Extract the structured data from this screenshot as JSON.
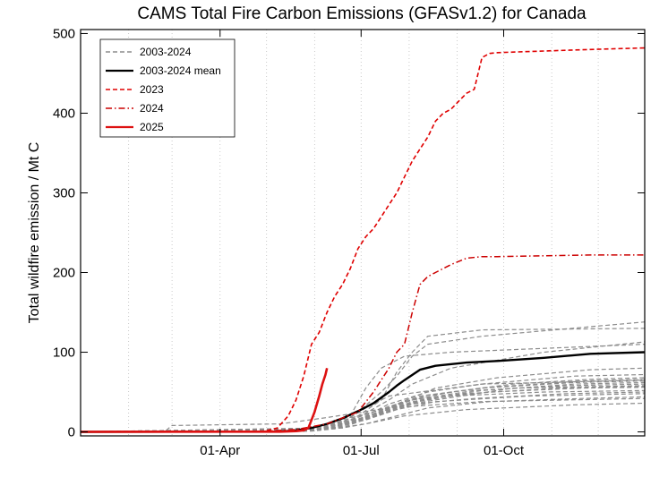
{
  "chart_data": {
    "type": "line",
    "title": "CAMS Total Fire Carbon Emissions (GFASv1.2) for Canada",
    "xlabel": "",
    "ylabel": "Total wildfire emission / Mt C",
    "x_unit": "day of year",
    "xlim": [
      1,
      365
    ],
    "ylim": [
      -5,
      505
    ],
    "x_ticks": [
      {
        "x": 91,
        "label": "01-Apr"
      },
      {
        "x": 182,
        "label": "01-Jul"
      },
      {
        "x": 274,
        "label": "01-Oct"
      }
    ],
    "y_ticks": [
      0,
      100,
      200,
      300,
      400,
      500
    ],
    "grid": "vertical dotted",
    "legend": {
      "placement": "top-left",
      "entries": [
        {
          "label": "2003-2024",
          "color": "#8c8c8c",
          "style": "dashed"
        },
        {
          "label": "2003-2024 mean",
          "color": "#000000",
          "style": "solid"
        },
        {
          "label": "2023",
          "color": "#e00000",
          "style": "dashed"
        },
        {
          "label": "2024",
          "color": "#cc0000",
          "style": "dash-dot"
        },
        {
          "label": "2025",
          "color": "#dd1111",
          "style": "solid"
        }
      ]
    },
    "series": [
      {
        "name": "2003-2024 mean",
        "color": "#000000",
        "style": "solid",
        "width": 2.4,
        "x": [
          1,
          130,
          140,
          150,
          160,
          170,
          180,
          190,
          200,
          205,
          210,
          220,
          230,
          250,
          270,
          300,
          330,
          365
        ],
        "y": [
          0,
          0.5,
          2,
          5,
          10,
          17,
          26,
          36,
          50,
          58,
          65,
          78,
          83,
          87,
          89,
          93,
          98,
          100
        ]
      },
      {
        "name": "2023",
        "color": "#e00000",
        "style": "dashed",
        "width": 1.6,
        "x": [
          1,
          120,
          128,
          135,
          140,
          145,
          150,
          155,
          160,
          165,
          170,
          175,
          180,
          185,
          190,
          195,
          200,
          205,
          210,
          215,
          220,
          225,
          230,
          235,
          240,
          245,
          250,
          255,
          260,
          265,
          270,
          300,
          330,
          365
        ],
        "y": [
          0,
          1,
          5,
          20,
          40,
          70,
          110,
          125,
          150,
          170,
          185,
          205,
          230,
          245,
          255,
          270,
          285,
          300,
          320,
          340,
          355,
          370,
          390,
          400,
          405,
          415,
          425,
          430,
          470,
          475,
          476,
          478,
          480,
          482
        ]
      },
      {
        "name": "2024",
        "color": "#cc0000",
        "style": "dash-dot",
        "width": 1.5,
        "x": [
          1,
          120,
          140,
          160,
          180,
          190,
          200,
          205,
          210,
          215,
          220,
          225,
          230,
          240,
          250,
          260,
          270,
          300,
          330,
          365
        ],
        "y": [
          0,
          1,
          3,
          10,
          25,
          50,
          80,
          100,
          110,
          150,
          185,
          195,
          200,
          210,
          218,
          220,
          220,
          221,
          222,
          222
        ]
      },
      {
        "name": "2025",
        "color": "#dd1111",
        "style": "solid",
        "width": 2.6,
        "x": [
          1,
          130,
          140,
          145,
          148,
          150,
          152,
          155,
          157,
          159,
          160
        ],
        "y": [
          0,
          0.3,
          1,
          2,
          5,
          15,
          25,
          45,
          60,
          72,
          80
        ]
      },
      {
        "name": "2003-2024",
        "color": "#8c8c8c",
        "style": "dashed",
        "width": 1.2,
        "x": [
          1,
          55,
          60,
          130,
          160,
          200,
          260,
          365
        ],
        "y": [
          0,
          0,
          8,
          10,
          18,
          30,
          38,
          42
        ]
      },
      {
        "name": "2003-2024",
        "color": "#8c8c8c",
        "style": "dashed",
        "width": 1.2,
        "x": [
          1,
          140,
          160,
          180,
          200,
          230,
          280,
          365
        ],
        "y": [
          0,
          1,
          8,
          20,
          30,
          40,
          55,
          58
        ]
      },
      {
        "name": "2003-2024",
        "color": "#8c8c8c",
        "style": "dashed",
        "width": 1.2,
        "x": [
          1,
          150,
          170,
          185,
          200,
          220,
          260,
          365
        ],
        "y": [
          0,
          2,
          12,
          30,
          45,
          50,
          60,
          65
        ]
      },
      {
        "name": "2003-2024",
        "color": "#8c8c8c",
        "style": "dashed",
        "width": 1.2,
        "x": [
          1,
          160,
          175,
          185,
          195,
          210,
          240,
          365
        ],
        "y": [
          0,
          5,
          20,
          55,
          80,
          95,
          100,
          110
        ]
      },
      {
        "name": "2003-2024",
        "color": "#8c8c8c",
        "style": "dashed",
        "width": 1.2,
        "x": [
          1,
          165,
          180,
          195,
          205,
          215,
          225,
          260,
          365
        ],
        "y": [
          0,
          5,
          25,
          50,
          70,
          95,
          110,
          120,
          138
        ]
      },
      {
        "name": "2003-2024",
        "color": "#8c8c8c",
        "style": "dashed",
        "width": 1.2,
        "x": [
          1,
          165,
          180,
          195,
          205,
          215,
          225,
          260,
          365
        ],
        "y": [
          0,
          4,
          20,
          40,
          75,
          100,
          120,
          128,
          130
        ]
      },
      {
        "name": "2003-2024",
        "color": "#8c8c8c",
        "style": "dashed",
        "width": 1.2,
        "x": [
          1,
          160,
          180,
          200,
          215,
          240,
          300,
          365
        ],
        "y": [
          0,
          3,
          18,
          40,
          60,
          80,
          100,
          113
        ]
      },
      {
        "name": "2003-2024",
        "color": "#8c8c8c",
        "style": "dashed",
        "width": 1.2,
        "x": [
          1,
          150,
          170,
          190,
          210,
          240,
          300,
          365
        ],
        "y": [
          0,
          2,
          10,
          20,
          35,
          45,
          50,
          52
        ]
      },
      {
        "name": "2003-2024",
        "color": "#8c8c8c",
        "style": "dashed",
        "width": 1.2,
        "x": [
          1,
          145,
          165,
          185,
          205,
          230,
          290,
          365
        ],
        "y": [
          0,
          1,
          6,
          15,
          28,
          38,
          45,
          48
        ]
      },
      {
        "name": "2003-2024",
        "color": "#8c8c8c",
        "style": "dashed",
        "width": 1.2,
        "x": [
          1,
          150,
          175,
          200,
          220,
          260,
          320,
          365
        ],
        "y": [
          0,
          2,
          12,
          30,
          45,
          55,
          62,
          64
        ]
      },
      {
        "name": "2003-2024",
        "color": "#8c8c8c",
        "style": "dashed",
        "width": 1.2,
        "x": [
          1,
          150,
          170,
          190,
          210,
          250,
          320,
          365
        ],
        "y": [
          0,
          1,
          5,
          12,
          20,
          28,
          34,
          36
        ]
      },
      {
        "name": "2003-2024",
        "color": "#8c8c8c",
        "style": "dashed",
        "width": 1.2,
        "x": [
          1,
          155,
          180,
          200,
          225,
          260,
          320,
          365
        ],
        "y": [
          0,
          2,
          15,
          35,
          50,
          60,
          70,
          72
        ]
      },
      {
        "name": "2003-2024",
        "color": "#8c8c8c",
        "style": "dashed",
        "width": 1.2,
        "x": [
          1,
          150,
          170,
          195,
          215,
          250,
          310,
          365
        ],
        "y": [
          0,
          2,
          10,
          22,
          38,
          48,
          55,
          57
        ]
      },
      {
        "name": "2003-2024",
        "color": "#8c8c8c",
        "style": "dashed",
        "width": 1.2,
        "x": [
          1,
          160,
          180,
          200,
          220,
          260,
          320,
          365
        ],
        "y": [
          0,
          3,
          14,
          26,
          40,
          52,
          60,
          62
        ]
      },
      {
        "name": "2003-2024",
        "color": "#8c8c8c",
        "style": "dashed",
        "width": 1.2,
        "x": [
          1,
          165,
          185,
          205,
          230,
          270,
          330,
          365
        ],
        "y": [
          0,
          4,
          18,
          35,
          55,
          68,
          78,
          80
        ]
      },
      {
        "name": "2003-2024",
        "color": "#8c8c8c",
        "style": "dashed",
        "width": 1.2,
        "x": [
          1,
          170,
          190,
          210,
          240,
          280,
          330,
          365
        ],
        "y": [
          0,
          5,
          20,
          38,
          50,
          60,
          66,
          68
        ]
      },
      {
        "name": "2003-2024",
        "color": "#8c8c8c",
        "style": "dashed",
        "width": 1.2,
        "x": [
          1,
          150,
          175,
          195,
          215,
          255,
          315,
          365
        ],
        "y": [
          0,
          2,
          12,
          25,
          35,
          42,
          48,
          50
        ]
      },
      {
        "name": "2003-2024",
        "color": "#8c8c8c",
        "style": "dashed",
        "width": 1.2,
        "x": [
          1,
          160,
          185,
          205,
          225,
          265,
          325,
          365
        ],
        "y": [
          0,
          3,
          10,
          20,
          30,
          38,
          42,
          44
        ]
      },
      {
        "name": "2003-2024",
        "color": "#8c8c8c",
        "style": "dashed",
        "width": 1.2,
        "x": [
          1,
          140,
          165,
          190,
          215,
          255,
          315,
          365
        ],
        "y": [
          0,
          1,
          8,
          22,
          40,
          52,
          58,
          60
        ]
      },
      {
        "name": "2003-2024",
        "color": "#8c8c8c",
        "style": "dashed",
        "width": 1.2,
        "x": [
          1,
          150,
          175,
          200,
          225,
          265,
          325,
          365
        ],
        "y": [
          0,
          2,
          15,
          32,
          46,
          56,
          64,
          66
        ]
      },
      {
        "name": "2003-2024",
        "color": "#8c8c8c",
        "style": "dashed",
        "width": 1.2,
        "x": [
          1,
          165,
          185,
          205,
          225,
          265,
          325,
          365
        ],
        "y": [
          0,
          4,
          16,
          28,
          42,
          50,
          55,
          56
        ]
      }
    ]
  }
}
